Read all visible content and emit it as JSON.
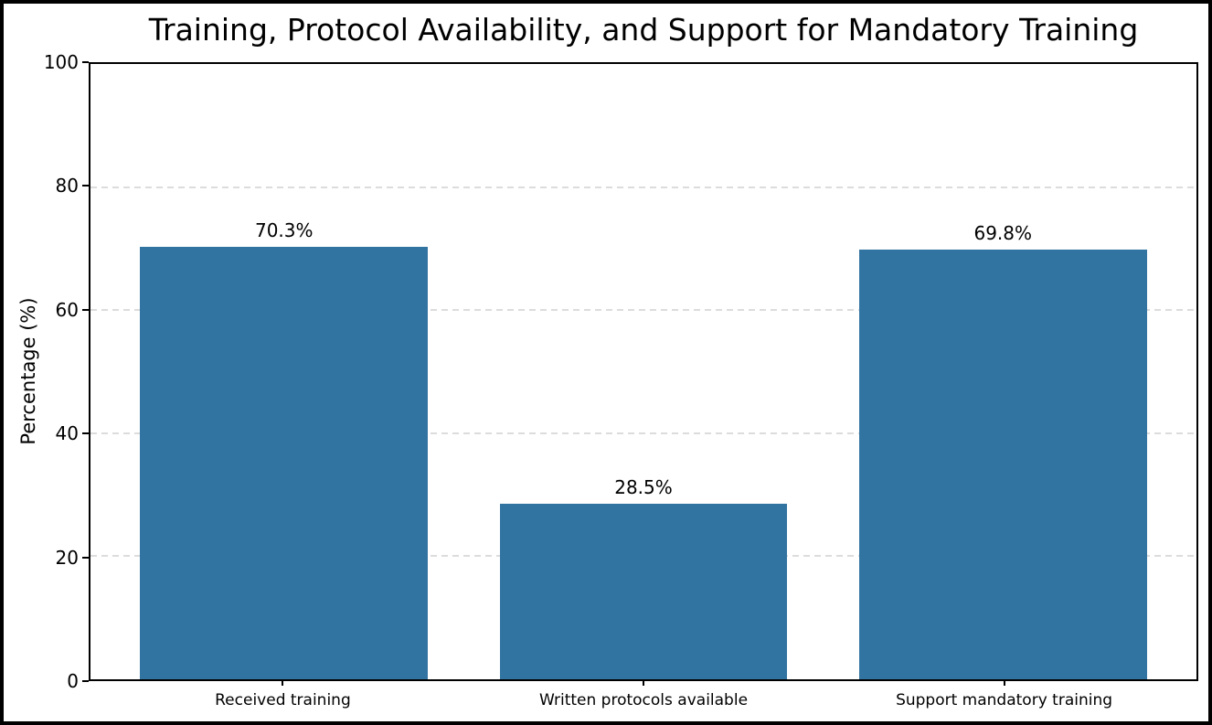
{
  "chart_data": {
    "type": "bar",
    "title": "Training, Protocol Availability, and Support for Mandatory Training",
    "categories": [
      "Received training",
      "Written protocols available",
      "Support mandatory training"
    ],
    "values": [
      70.3,
      28.5,
      69.8
    ],
    "value_labels": [
      "70.3%",
      "28.5%",
      "69.8%"
    ],
    "xlabel": "",
    "ylabel": "Percentage (%)",
    "ylim": [
      0,
      100
    ],
    "yticks": [
      0,
      20,
      40,
      60,
      80,
      100
    ],
    "bar_color": "#3274A1",
    "grid": "horizontal dashed",
    "grid_color": "#DCDCDC",
    "spine_color": "#000000",
    "background_color": "#FFFFFF",
    "legend": "none"
  }
}
